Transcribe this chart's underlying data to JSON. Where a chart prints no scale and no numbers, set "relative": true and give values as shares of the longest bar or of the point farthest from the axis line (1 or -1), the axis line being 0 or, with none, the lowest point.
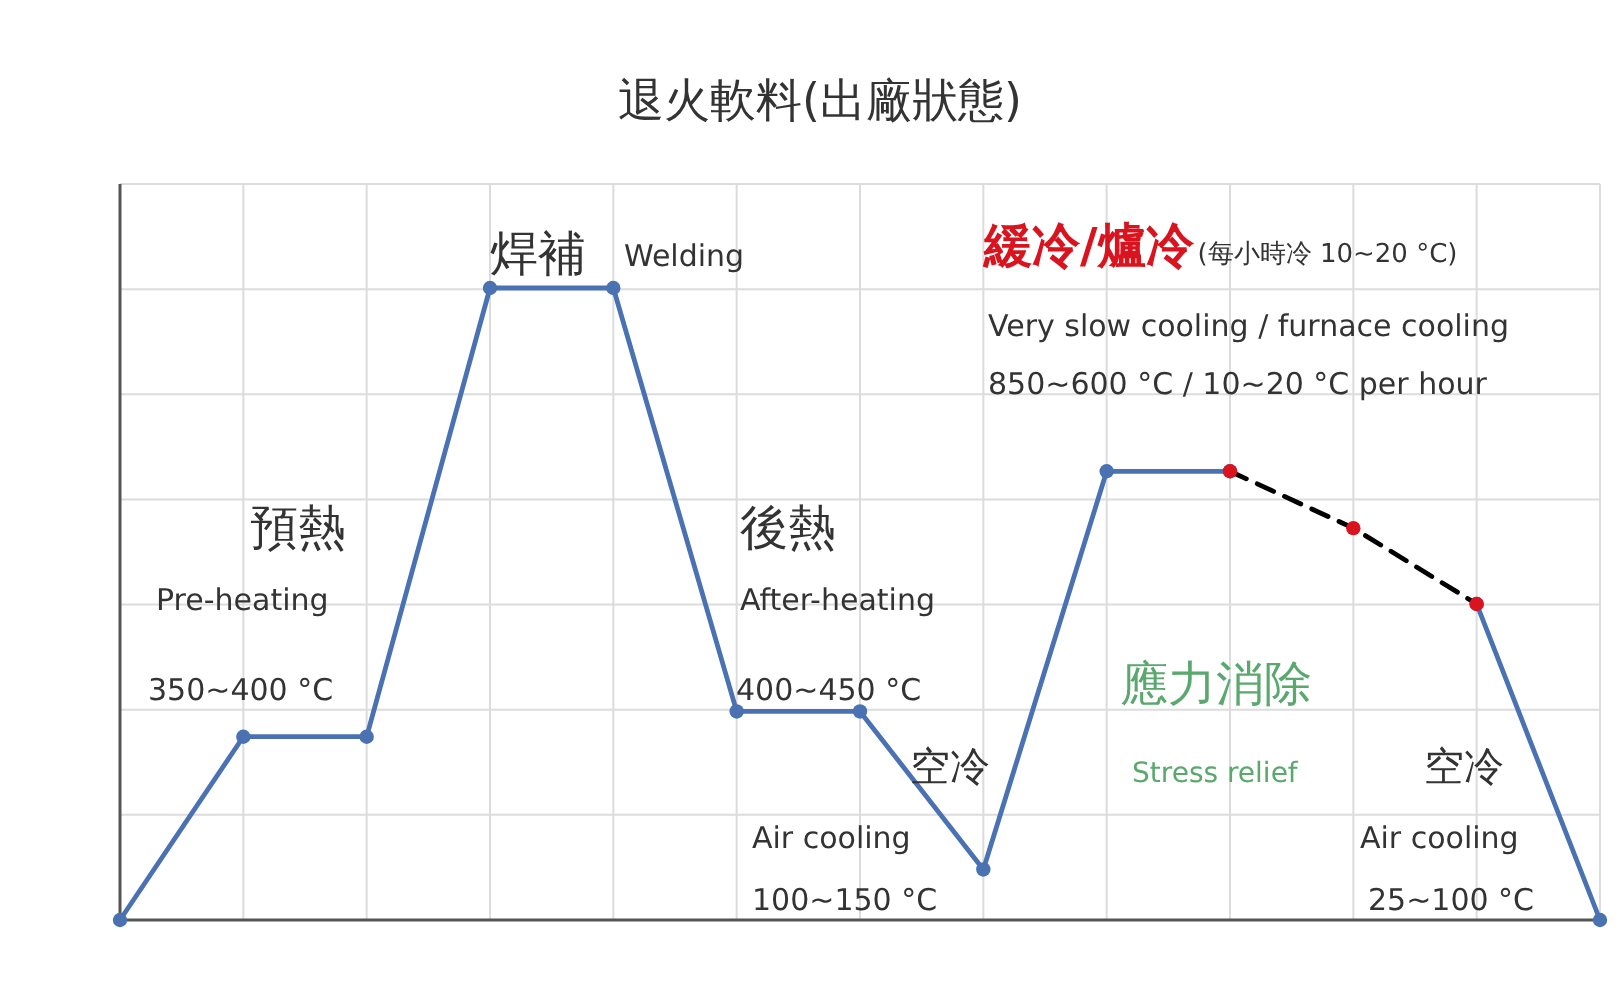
{
  "chart_data": {
    "type": "line",
    "title": "退火軟料(出廠狀態)",
    "relative": true,
    "grid": true,
    "marker": "circle",
    "categories": [
      null,
      null,
      null,
      null,
      null,
      null,
      null,
      null,
      null,
      null,
      null,
      null,
      null
    ],
    "series": [
      {
        "color": "#4a72b2",
        "values": [
          0,
          0.29,
          0.29,
          1,
          1,
          0.33,
          0.33,
          0.08,
          0.71,
          0.71,
          null,
          null,
          null
        ]
      },
      {
        "color": "#4a72b2",
        "values": [
          null,
          null,
          null,
          null,
          null,
          null,
          null,
          null,
          null,
          null,
          null,
          0.5,
          0
        ]
      },
      {
        "line_style": "dashed",
        "color": "#000000",
        "colors": [
          null,
          null,
          null,
          null,
          null,
          null,
          null,
          null,
          null,
          "#d9141e",
          "#d9141e",
          "#d9141e",
          null
        ],
        "values": [
          null,
          null,
          null,
          null,
          null,
          null,
          null,
          null,
          null,
          0.71,
          0.62,
          0.5,
          null
        ]
      }
    ],
    "annotations": [
      "預熱",
      "Pre-heating",
      "350~400 °C",
      "焊補",
      "Welding",
      "後熱",
      "After-heating",
      "400~450 °C",
      "空冷",
      "Air cooling",
      "100~150 °C",
      "緩冷/爐冷",
      "(每小時冷 10~20 °C)",
      "Very slow cooling / furnace cooling",
      "850~600 °C / 10~20 °C per hour",
      "應力消除",
      "Stress relief",
      "空冷",
      "Air cooling",
      "25~100 °C"
    ]
  }
}
